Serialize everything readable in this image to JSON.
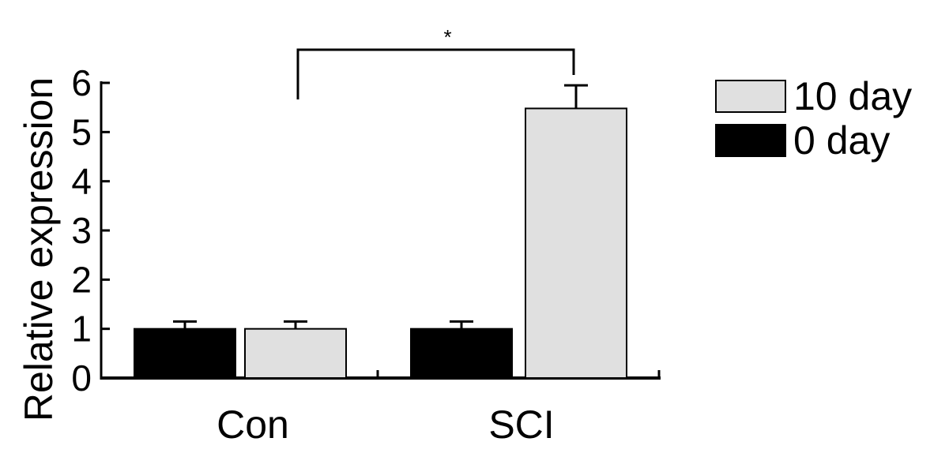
{
  "chart_data": {
    "type": "bar",
    "ylabel": "Relative expression",
    "ylim": [
      0,
      6
    ],
    "yticks": [
      0,
      1,
      2,
      3,
      4,
      5,
      6
    ],
    "categories": [
      "Con",
      "SCI"
    ],
    "series": [
      {
        "name": "0 day",
        "color": "#000000",
        "values": [
          1.0,
          1.0
        ],
        "errors": [
          0.15,
          0.15
        ]
      },
      {
        "name": "10 day",
        "color": "#e0e0e0",
        "values": [
          1.0,
          5.48
        ],
        "errors": [
          0.15,
          0.47
        ]
      }
    ],
    "legend": {
      "placement": "top-right",
      "entries": [
        {
          "series": 1,
          "label": "10 day"
        },
        {
          "series": 0,
          "label": "0 day"
        }
      ]
    },
    "significance": {
      "label": "*",
      "from_bar": [
        0,
        1
      ],
      "to_bar": [
        1,
        1
      ]
    }
  }
}
